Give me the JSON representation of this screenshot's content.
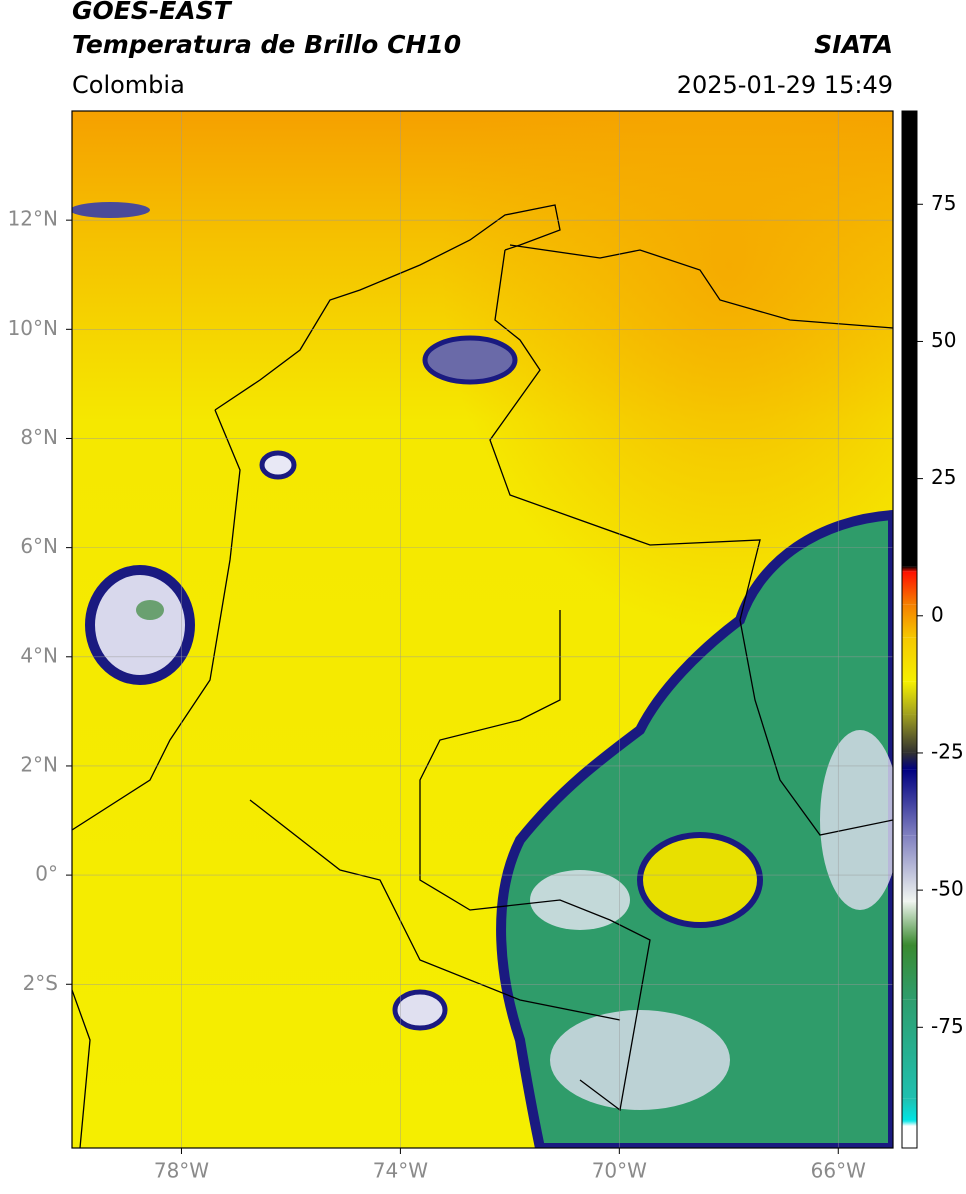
{
  "header": {
    "satellite": "GOES-EAST",
    "product": "Temperatura de Brillo CH10",
    "source": "SIATA",
    "region": "Colombia",
    "timestamp": "2025-01-29 15:49"
  },
  "map": {
    "xlim": [
      -80,
      -65
    ],
    "ylim": [
      -5,
      14
    ],
    "xticks": [
      {
        "value": -78,
        "label": "78°W"
      },
      {
        "value": -74,
        "label": "74°W"
      },
      {
        "value": -70,
        "label": "70°W"
      },
      {
        "value": -66,
        "label": "66°W"
      }
    ],
    "yticks": [
      {
        "value": 12,
        "label": "12°N"
      },
      {
        "value": 10,
        "label": "10°N"
      },
      {
        "value": 8,
        "label": "8°N"
      },
      {
        "value": 6,
        "label": "6°N"
      },
      {
        "value": 4,
        "label": "4°N"
      },
      {
        "value": 2,
        "label": "2°N"
      },
      {
        "value": 0,
        "label": "0°"
      },
      {
        "value": -2,
        "label": "2°S"
      }
    ],
    "grid": true,
    "grid_color": "#999999"
  },
  "colorbar": {
    "lim": [
      -97,
      92
    ],
    "ticks": [
      75,
      50,
      25,
      0,
      -25,
      -50,
      -75
    ],
    "colormap": [
      {
        "value": -97,
        "color": "#ffffff"
      },
      {
        "value": -93,
        "color": "#ffffff"
      },
      {
        "value": -92,
        "color": "#00e5e5"
      },
      {
        "value": -88,
        "color": "#20c0b0"
      },
      {
        "value": -70,
        "color": "#2e9e6e"
      },
      {
        "value": -60,
        "color": "#3a8a30"
      },
      {
        "value": -52,
        "color": "#f0f5f0"
      },
      {
        "value": -40,
        "color": "#8080c0"
      },
      {
        "value": -28,
        "color": "#000080"
      },
      {
        "value": -25,
        "color": "#303030"
      },
      {
        "value": -18,
        "color": "#a0a020"
      },
      {
        "value": -12,
        "color": "#f5f000"
      },
      {
        "value": -4,
        "color": "#f5c800"
      },
      {
        "value": 2,
        "color": "#f58000"
      },
      {
        "value": 8,
        "color": "#ff1000"
      },
      {
        "value": 9,
        "color": "#000000"
      },
      {
        "value": 92,
        "color": "#000000"
      }
    ]
  }
}
